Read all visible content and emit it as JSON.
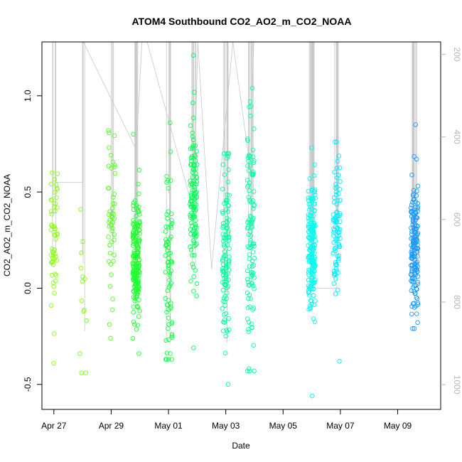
{
  "chart_data": {
    "type": "scatter",
    "title": "ATOM4 Southbound CO2_AO2_m_CO2_NOAA",
    "xlabel": "Date",
    "ylabel": "CO2_AO2_m_CO2_NOAA",
    "xlim": [
      "2018-04-26 14:00",
      "2018-05-10 12:00"
    ],
    "ylim": [
      -0.63,
      1.28
    ],
    "x_ticks": [
      {
        "date": "2018-04-27",
        "label": "Apr 27"
      },
      {
        "date": "2018-04-29",
        "label": "Apr 29"
      },
      {
        "date": "2018-05-01",
        "label": "May 01"
      },
      {
        "date": "2018-05-03",
        "label": "May 03"
      },
      {
        "date": "2018-05-05",
        "label": "May 05"
      },
      {
        "date": "2018-05-07",
        "label": "May 07"
      },
      {
        "date": "2018-05-09",
        "label": "May 09"
      }
    ],
    "y_ticks": [
      {
        "value": -0.5,
        "label": "-0.5"
      },
      {
        "value": 0.0,
        "label": "0.0"
      },
      {
        "value": 0.5,
        "label": "0.5"
      },
      {
        "value": 1.0,
        "label": "1.0"
      }
    ],
    "secondary_axis": {
      "side": "right",
      "quantity": "pressure",
      "reversed": true,
      "range": [
        170,
        1060
      ],
      "color": "#b8b8b8",
      "ticks": [
        {
          "value": 200,
          "label": "200"
        },
        {
          "value": 400,
          "label": "400"
        },
        {
          "value": 600,
          "label": "600"
        },
        {
          "value": 800,
          "label": "800"
        },
        {
          "value": 1000,
          "label": "1000"
        }
      ]
    },
    "point_style": "open-circle",
    "color_scale": [
      "#99ff00",
      "#00ff33",
      "#00ffdd",
      "#0099ff"
    ],
    "profile_line_color": "#c8c8c8",
    "flights": [
      {
        "date": "2018-04-27 00:30",
        "center": 0.22,
        "spread": 0.18,
        "n": 55,
        "min": -0.39,
        "max": 0.6,
        "color": "#88ff11"
      },
      {
        "date": "2018-04-28 00:30",
        "center": 0.02,
        "spread": 0.16,
        "n": 14,
        "min": -0.44,
        "max": 0.41,
        "color": "#7dff14"
      },
      {
        "date": "2018-04-29 00:30",
        "center": 0.35,
        "spread": 0.22,
        "n": 50,
        "min": -0.26,
        "max": 0.82,
        "color": "#55ff22"
      },
      {
        "date": "2018-04-29 21:00",
        "center": 0.15,
        "spread": 0.16,
        "n": 200,
        "min": -0.34,
        "max": 0.8,
        "color": "#22ff33"
      },
      {
        "date": "2018-05-01 00:00",
        "center": 0.08,
        "spread": 0.26,
        "n": 75,
        "min": -0.37,
        "max": 0.86,
        "color": "#11ff44"
      },
      {
        "date": "2018-05-01 21:00",
        "center": 0.42,
        "spread": 0.22,
        "n": 120,
        "min": -0.31,
        "max": 1.21,
        "color": "#00ff55"
      },
      {
        "date": "2018-05-03 00:00",
        "center": 0.2,
        "spread": 0.24,
        "n": 110,
        "min": -0.5,
        "max": 0.7,
        "color": "#00ff99"
      },
      {
        "date": "2018-05-03 21:00",
        "center": 0.3,
        "spread": 0.3,
        "n": 110,
        "min": -0.43,
        "max": 1.04,
        "color": "#00ffaa"
      },
      {
        "date": "2018-05-06 00:00",
        "center": 0.22,
        "spread": 0.16,
        "n": 190,
        "min": -0.56,
        "max": 0.73,
        "color": "#00ffee"
      },
      {
        "date": "2018-05-06 21:00",
        "center": 0.32,
        "spread": 0.18,
        "n": 90,
        "min": -0.38,
        "max": 0.76,
        "color": "#00eeff"
      },
      {
        "date": "2018-05-09 14:00",
        "center": 0.22,
        "spread": 0.17,
        "n": 160,
        "min": -0.21,
        "max": 0.85,
        "color": "#1a99ff"
      }
    ]
  }
}
